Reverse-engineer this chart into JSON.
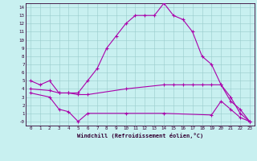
{
  "xlabel": "Windchill (Refroidissement éolien,°C)",
  "bg_color": "#c8f0f0",
  "line_color": "#aa00aa",
  "xlim": [
    -0.5,
    23.5
  ],
  "ylim": [
    -0.5,
    14.5
  ],
  "xticks": [
    0,
    1,
    2,
    3,
    4,
    5,
    6,
    7,
    8,
    9,
    10,
    11,
    12,
    13,
    14,
    15,
    16,
    17,
    18,
    19,
    20,
    21,
    22,
    23
  ],
  "yticks": [
    0,
    1,
    2,
    3,
    4,
    5,
    6,
    7,
    8,
    9,
    10,
    11,
    12,
    13,
    14
  ],
  "ytick_labels": [
    "-0",
    "1",
    "2",
    "3",
    "4",
    "5",
    "6",
    "7",
    "8",
    "9",
    "10",
    "11",
    "12",
    "13",
    "14"
  ],
  "line1_x": [
    0,
    1,
    2,
    3,
    4,
    5,
    6,
    7,
    8,
    9,
    10,
    11,
    12,
    13,
    14,
    15,
    16,
    17,
    18,
    19,
    20,
    21,
    22,
    23
  ],
  "line1_y": [
    5,
    4.5,
    5,
    3.5,
    3.5,
    3.5,
    5,
    6.5,
    9,
    10.5,
    12,
    13,
    13,
    13,
    14.5,
    13,
    12.5,
    11,
    8,
    7,
    4.5,
    3,
    1,
    0
  ],
  "line2_x": [
    0,
    2,
    3,
    4,
    5,
    6,
    10,
    14,
    15,
    16,
    17,
    18,
    19,
    20,
    21,
    22,
    23
  ],
  "line2_y": [
    4,
    3.8,
    3.5,
    3.5,
    3.3,
    3.3,
    4.0,
    4.5,
    4.5,
    4.5,
    4.5,
    4.5,
    4.5,
    4.5,
    2.5,
    1.5,
    0
  ],
  "line3_x": [
    0,
    2,
    3,
    4,
    5,
    6,
    10,
    14,
    19,
    20,
    21,
    22,
    23
  ],
  "line3_y": [
    3.5,
    3.0,
    1.5,
    1.2,
    0.0,
    1.0,
    1.0,
    1.0,
    0.8,
    2.5,
    1.5,
    0.5,
    0
  ]
}
